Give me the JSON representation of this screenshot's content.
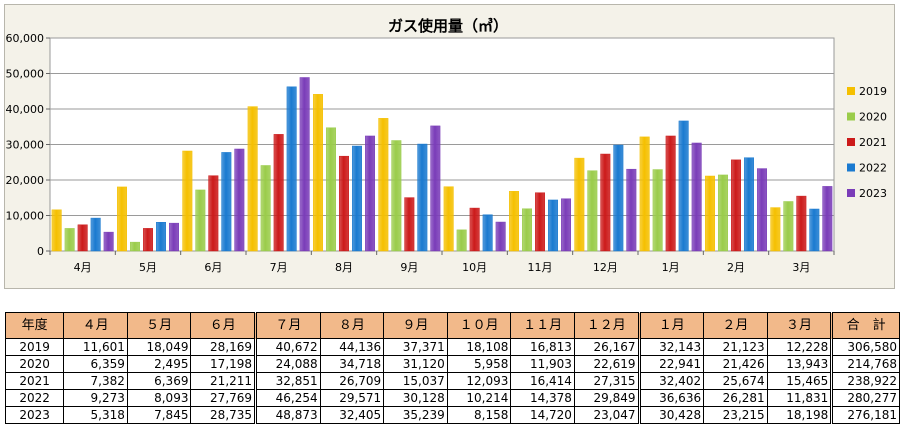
{
  "colors": {
    "2019": "#f5c000",
    "2020": "#9acc4a",
    "2021": "#cc1a1a",
    "2022": "#1a7ad0",
    "2023": "#7a3cb8"
  },
  "chart_data": {
    "type": "bar",
    "title": "ガス使用量（㎥）",
    "xlabel": "",
    "ylabel": "",
    "ylim": [
      0,
      60000
    ],
    "yticks": [
      "0",
      "10,000",
      "20,000",
      "30,000",
      "40,000",
      "50,000",
      "60,000"
    ],
    "grid": true,
    "legend_position": "right",
    "categories": [
      "4月",
      "5月",
      "6月",
      "7月",
      "8月",
      "9月",
      "10月",
      "11月",
      "12月",
      "1月",
      "2月",
      "3月"
    ],
    "series": [
      {
        "name": "2019",
        "values": [
          11601,
          18049,
          28169,
          40672,
          44136,
          37371,
          18108,
          16813,
          26167,
          32143,
          21123,
          12228
        ]
      },
      {
        "name": "2020",
        "values": [
          6359,
          2495,
          17198,
          24088,
          34718,
          31120,
          5958,
          11903,
          22619,
          22941,
          21426,
          13943
        ]
      },
      {
        "name": "2021",
        "values": [
          7382,
          6369,
          21211,
          32851,
          26709,
          15037,
          12093,
          16414,
          27315,
          32402,
          25674,
          15465
        ]
      },
      {
        "name": "2022",
        "values": [
          9273,
          8093,
          27769,
          46254,
          29571,
          30128,
          10214,
          14378,
          29849,
          36636,
          26281,
          11831
        ]
      },
      {
        "name": "2023",
        "values": [
          5318,
          7845,
          28735,
          48873,
          32405,
          35239,
          8158,
          14720,
          23047,
          30428,
          23215,
          18198
        ]
      }
    ]
  },
  "table": {
    "headers": [
      "年度",
      "４月",
      "５月",
      "６月",
      "７月",
      "８月",
      "９月",
      "１０月",
      "１１月",
      "１２月",
      "１月",
      "２月",
      "３月",
      "合　計"
    ],
    "rows": [
      [
        "2019",
        "11,601",
        "18,049",
        "28,169",
        "40,672",
        "44,136",
        "37,371",
        "18,108",
        "16,813",
        "26,167",
        "32,143",
        "21,123",
        "12,228",
        "306,580"
      ],
      [
        "2020",
        "6,359",
        "2,495",
        "17,198",
        "24,088",
        "34,718",
        "31,120",
        "5,958",
        "11,903",
        "22,619",
        "22,941",
        "21,426",
        "13,943",
        "214,768"
      ],
      [
        "2021",
        "7,382",
        "6,369",
        "21,211",
        "32,851",
        "26,709",
        "15,037",
        "12,093",
        "16,414",
        "27,315",
        "32,402",
        "25,674",
        "15,465",
        "238,922"
      ],
      [
        "2022",
        "9,273",
        "8,093",
        "27,769",
        "46,254",
        "29,571",
        "30,128",
        "10,214",
        "14,378",
        "29,849",
        "36,636",
        "26,281",
        "11,831",
        "280,277"
      ],
      [
        "2023",
        "5,318",
        "7,845",
        "28,735",
        "48,873",
        "32,405",
        "35,239",
        "8,158",
        "14,720",
        "23,047",
        "30,428",
        "23,215",
        "18,198",
        "276,181"
      ]
    ]
  }
}
